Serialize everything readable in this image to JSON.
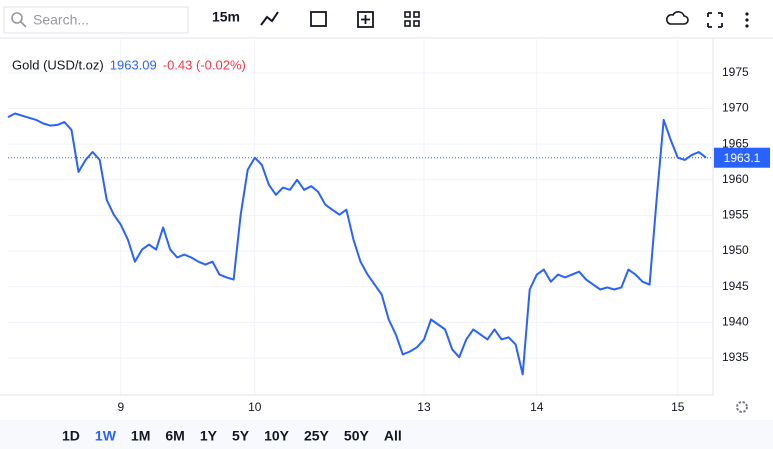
{
  "toolbar": {
    "search_placeholder": "Search...",
    "interval": "15m"
  },
  "chart_data": {
    "type": "line",
    "title": "Gold (USD/t.oz)",
    "price": "1963.09",
    "change": "-0.43 (-0.02%)",
    "categories": [
      null,
      null,
      null,
      null,
      null,
      null,
      null,
      null,
      null,
      null,
      null,
      null,
      null,
      null,
      null,
      null,
      "9",
      null,
      null,
      null,
      null,
      null,
      null,
      null,
      null,
      null,
      null,
      null,
      null,
      null,
      null,
      null,
      null,
      null,
      null,
      "10",
      null,
      null,
      null,
      null,
      null,
      null,
      null,
      null,
      null,
      null,
      null,
      null,
      null,
      null,
      null,
      null,
      null,
      null,
      null,
      null,
      null,
      null,
      null,
      "13",
      null,
      null,
      null,
      null,
      null,
      null,
      null,
      null,
      null,
      null,
      null,
      null,
      null,
      null,
      null,
      "14",
      null,
      null,
      null,
      null,
      null,
      null,
      null,
      null,
      null,
      null,
      null,
      null,
      null,
      null,
      null,
      null,
      null,
      null,
      null,
      "15",
      null,
      null,
      null,
      null
    ],
    "values": [
      1968.8,
      1969.3,
      1969.0,
      1968.7,
      1968.4,
      1967.9,
      1967.6,
      1967.7,
      1968.1,
      1967.0,
      1961.1,
      1962.8,
      1963.9,
      1962.8,
      1957.2,
      1955.1,
      1953.7,
      1951.6,
      1948.5,
      1950.2,
      1950.9,
      1950.2,
      1953.3,
      1950.2,
      1949.1,
      1949.5,
      1949.1,
      1948.5,
      1948.1,
      1948.5,
      1946.7,
      1946.3,
      1946.0,
      1955.1,
      1961.4,
      1963.1,
      1962.1,
      1959.3,
      1957.9,
      1958.9,
      1958.6,
      1960.0,
      1958.6,
      1959.1,
      1958.3,
      1956.5,
      1955.8,
      1955.1,
      1955.8,
      1951.6,
      1948.5,
      1946.7,
      1945.3,
      1943.9,
      1940.4,
      1938.3,
      1935.5,
      1935.9,
      1936.5,
      1937.6,
      1940.4,
      1939.7,
      1939.0,
      1936.2,
      1935.1,
      1937.6,
      1939.0,
      1938.3,
      1937.6,
      1939.0,
      1937.6,
      1937.9,
      1936.9,
      1932.7,
      1944.6,
      1946.7,
      1947.4,
      1945.7,
      1946.7,
      1946.3,
      1946.7,
      1947.1,
      1946.0,
      1945.3,
      1944.6,
      1944.9,
      1944.6,
      1944.9,
      1947.4,
      1946.7,
      1945.7,
      1945.3,
      1957.2,
      1968.4,
      1965.6,
      1963.1,
      1962.8,
      1963.5,
      1963.9,
      1963.1
    ],
    "color": "#2962ff",
    "last_price": 1963.1,
    "ylim": [
      1929.8,
      1979.9
    ],
    "yticks": [
      1935,
      1940,
      1945,
      1950,
      1955,
      1960,
      1965,
      1970,
      1975
    ],
    "grid": true
  },
  "range_buttons": [
    "1D",
    "1W",
    "1M",
    "6M",
    "1Y",
    "5Y",
    "10Y",
    "25Y",
    "50Y",
    "All"
  ],
  "active_range": 1
}
